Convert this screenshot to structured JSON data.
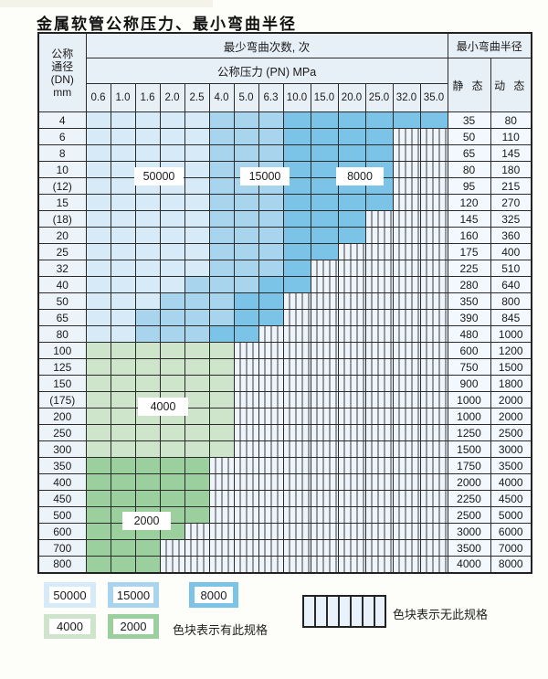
{
  "page": {
    "title": "金属软管公称压力、最小弯曲半径"
  },
  "table": {
    "dn_header_lines": [
      "公称",
      "通径",
      "(DN)",
      "mm"
    ],
    "cycles_header": "最少弯曲次数, 次",
    "pressure_header": "公称压力 (PN) MPa",
    "pressure_columns": [
      "0.6",
      "1.0",
      "1.6",
      "2.0",
      "2.5",
      "4.0",
      "5.0",
      "6.3",
      "10.0",
      "15.0",
      "20.0",
      "25.0",
      "32.0",
      "35.0"
    ],
    "radius_header": "最小弯曲半径",
    "static_header": "静 态",
    "dynamic_header": "动 态",
    "cell_code_meaning": {
      "1": "50000",
      "2": "15000",
      "3": "8000",
      "4": "4000",
      "5": "2000",
      "0": "无此规格"
    },
    "rows": [
      {
        "dn": "4",
        "cells": "11111222333333",
        "static": "35",
        "dynamic": "80"
      },
      {
        "dn": "6",
        "cells": "11111222333300",
        "static": "50",
        "dynamic": "110"
      },
      {
        "dn": "8",
        "cells": "11111222333300",
        "static": "65",
        "dynamic": "145"
      },
      {
        "dn": "10",
        "cells": "11111222333300",
        "static": "80",
        "dynamic": "180"
      },
      {
        "dn": "(12)",
        "cells": "11111222333300",
        "static": "95",
        "dynamic": "215"
      },
      {
        "dn": "15",
        "cells": "11111222333300",
        "static": "120",
        "dynamic": "270"
      },
      {
        "dn": "(18)",
        "cells": "11111222333000",
        "static": "145",
        "dynamic": "325"
      },
      {
        "dn": "20",
        "cells": "11111222333000",
        "static": "160",
        "dynamic": "360"
      },
      {
        "dn": "25",
        "cells": "11111222330000",
        "static": "175",
        "dynamic": "400"
      },
      {
        "dn": "32",
        "cells": "11111222300000",
        "static": "225",
        "dynamic": "510"
      },
      {
        "dn": "40",
        "cells": "11112223300000",
        "static": "280",
        "dynamic": "640"
      },
      {
        "dn": "50",
        "cells": "11122233000000",
        "static": "350",
        "dynamic": "800"
      },
      {
        "dn": "65",
        "cells": "11222233000000",
        "static": "390",
        "dynamic": "845"
      },
      {
        "dn": "80",
        "cells": "11222330000000",
        "static": "480",
        "dynamic": "1000"
      },
      {
        "dn": "100",
        "cells": "44444400000000",
        "static": "600",
        "dynamic": "1200"
      },
      {
        "dn": "125",
        "cells": "44444400000000",
        "static": "750",
        "dynamic": "1500"
      },
      {
        "dn": "150",
        "cells": "44444400000000",
        "static": "900",
        "dynamic": "1800"
      },
      {
        "dn": "(175)",
        "cells": "44444400000000",
        "static": "1000",
        "dynamic": "2000"
      },
      {
        "dn": "200",
        "cells": "44444400000000",
        "static": "1000",
        "dynamic": "2000"
      },
      {
        "dn": "250",
        "cells": "44444400000000",
        "static": "1250",
        "dynamic": "2500"
      },
      {
        "dn": "300",
        "cells": "44444400000000",
        "static": "1500",
        "dynamic": "3000"
      },
      {
        "dn": "350",
        "cells": "55555000000000",
        "static": "1750",
        "dynamic": "3500"
      },
      {
        "dn": "400",
        "cells": "55555000000000",
        "static": "2000",
        "dynamic": "4000"
      },
      {
        "dn": "450",
        "cells": "55555000000000",
        "static": "2250",
        "dynamic": "4500"
      },
      {
        "dn": "500",
        "cells": "55555000000000",
        "static": "2500",
        "dynamic": "5000"
      },
      {
        "dn": "600",
        "cells": "55550000000000",
        "static": "3000",
        "dynamic": "6000"
      },
      {
        "dn": "700",
        "cells": "55500000000000",
        "static": "3500",
        "dynamic": "7000"
      },
      {
        "dn": "800",
        "cells": "55500000000000",
        "static": "4000",
        "dynamic": "8000"
      }
    ],
    "region_labels": [
      {
        "text": "50000"
      },
      {
        "text": "15000"
      },
      {
        "text": "8000"
      },
      {
        "text": "4000"
      },
      {
        "text": "2000"
      }
    ]
  },
  "legend": {
    "items": [
      {
        "label": "50000",
        "color": "#d7eaf7"
      },
      {
        "label": "15000",
        "color": "#a9d4ee"
      },
      {
        "label": "8000",
        "color": "#7cc3e8"
      },
      {
        "label": "4000",
        "color": "#cee5cc"
      },
      {
        "label": "2000",
        "color": "#9bcf9d"
      }
    ],
    "has_spec_text": "色块表示有此规格",
    "no_spec_text": "色块表示无此规格"
  },
  "colors": {
    "cycles_50000": "#d7eaf7",
    "cycles_15000": "#a9d4ee",
    "cycles_8000": "#7cc3e8",
    "cycles_4000": "#cee5cc",
    "cycles_2000": "#9bcf9d",
    "no_spec_bg": "#edf5fb",
    "header_bg": "#e7f0f7"
  }
}
